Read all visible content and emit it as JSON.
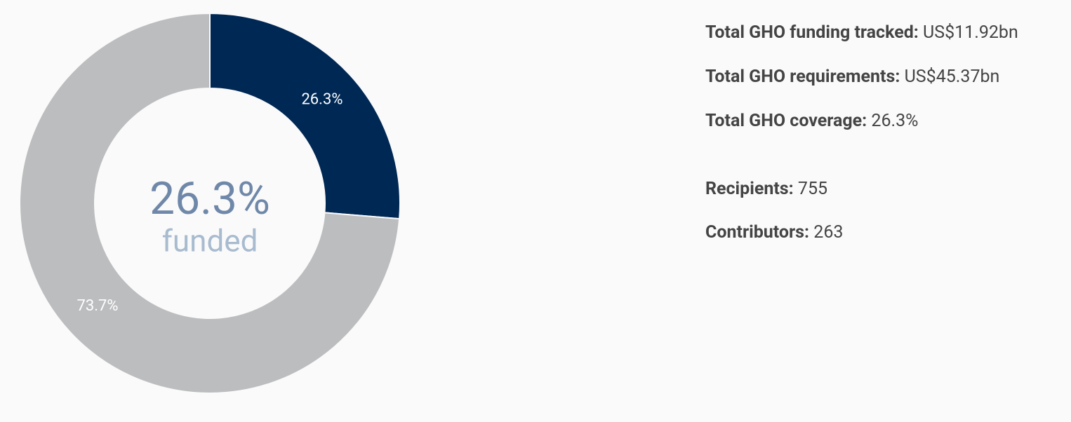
{
  "chart_data": {
    "type": "donut",
    "values": [
      26.3,
      73.7
    ],
    "value_labels": [
      "26.3%",
      "73.7%"
    ],
    "colors": [
      "#002855",
      "#bcbdbf"
    ],
    "center_label": "26.3%",
    "center_sublabel": "funded"
  },
  "stats": [
    {
      "label": "Total GHO funding tracked:",
      "value": "US$11.92bn"
    },
    {
      "label": "Total GHO requirements:",
      "value": "US$45.37bn"
    },
    {
      "label": "Total GHO coverage:",
      "value": "26.3%"
    },
    {
      "label": "Recipients:",
      "value": "755"
    },
    {
      "label": "Contributors:",
      "value": "263"
    }
  ]
}
